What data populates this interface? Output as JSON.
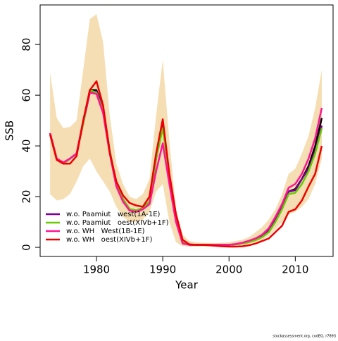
{
  "chart_data": {
    "type": "line",
    "x_label": "Year",
    "y_label": "SSB",
    "caption": "stockassessment.org, codEG, r7893",
    "x": [
      1973,
      1974,
      1975,
      1976,
      1977,
      1978,
      1979,
      1980,
      1981,
      1982,
      1983,
      1984,
      1985,
      1986,
      1987,
      1988,
      1989,
      1990,
      1991,
      1992,
      1993,
      1994,
      1995,
      1996,
      1997,
      1998,
      1999,
      2000,
      2001,
      2002,
      2003,
      2004,
      2005,
      2006,
      2007,
      2008,
      2009,
      2010,
      2011,
      2012,
      2013,
      2014
    ],
    "band": {
      "color": "#f5deb3",
      "lower": [
        21,
        18.5,
        19,
        21,
        26,
        32,
        35,
        30,
        26,
        22,
        16,
        12,
        10,
        10,
        11,
        14,
        22,
        25,
        10,
        2,
        0.5,
        0.3,
        0.3,
        0.3,
        0.3,
        0.3,
        0.3,
        0.3,
        0.5,
        0.8,
        1.2,
        2,
        3,
        4.5,
        7,
        10,
        13,
        14,
        16,
        19,
        25,
        35
      ],
      "upper": [
        69,
        51,
        47,
        47.5,
        50,
        70,
        90,
        92,
        81,
        52,
        33,
        25,
        20,
        19,
        21,
        27,
        52,
        74,
        42,
        15,
        5,
        2.5,
        2,
        1.8,
        1.7,
        1.7,
        1.8,
        2,
        2.5,
        3,
        4,
        6,
        8,
        11,
        15,
        21,
        29,
        31,
        37,
        44,
        55,
        70
      ]
    },
    "series": [
      {
        "color": "#000000",
        "values": [
          45,
          35,
          33,
          35,
          37,
          49,
          62,
          62,
          55,
          38,
          25,
          19,
          15,
          14.5,
          15.5,
          18,
          35,
          48,
          28,
          11,
          2,
          1,
          1,
          1,
          1,
          1,
          1,
          1,
          1.2,
          1.6,
          2.2,
          3,
          4.5,
          6.5,
          11,
          16,
          22,
          23,
          27,
          32,
          40,
          51
        ]
      },
      {
        "name": "w.o. Paamiut   west(1A-1E)",
        "color": "#7b0096",
        "values": [
          45,
          35,
          33,
          35,
          37,
          49,
          61,
          61.5,
          55,
          38,
          25,
          19,
          15,
          14.5,
          15.5,
          18,
          35,
          48,
          28,
          11,
          2,
          1,
          1,
          1,
          1,
          1,
          1,
          1,
          1.2,
          1.6,
          2.2,
          3,
          4.5,
          6.5,
          11,
          16,
          22,
          22.5,
          27,
          31,
          38,
          48
        ]
      },
      {
        "name": "w.o. Paamiut   oest(XIVb+1F)",
        "color": "#66cc00",
        "values": [
          45,
          35,
          33,
          35,
          37,
          49,
          62,
          61,
          54,
          38,
          25,
          19,
          15,
          14.5,
          15.5,
          18,
          35,
          47,
          28,
          11,
          2,
          1,
          1,
          1,
          1,
          1,
          1,
          1,
          1.2,
          1.5,
          2,
          2.8,
          4,
          6,
          10,
          15,
          21,
          21.5,
          25,
          30,
          37,
          47
        ]
      },
      {
        "name": "w.o. WH   West(1B-1E)",
        "color": "#ff1493",
        "values": [
          45,
          35,
          33.5,
          35,
          37,
          50,
          61,
          60.5,
          53,
          37,
          24,
          18,
          14.5,
          14,
          15,
          17,
          30,
          41,
          25,
          10,
          1.5,
          1,
          1,
          1,
          1,
          1,
          1,
          1,
          1.3,
          1.8,
          2.6,
          3.5,
          5,
          7.5,
          12,
          17,
          23.5,
          25,
          29,
          35,
          43,
          55
        ]
      },
      {
        "name": "w.o. WH   oest(XIVb+1F)",
        "color": "#ee0000",
        "values": [
          44.5,
          34.5,
          33,
          33,
          36,
          50,
          62,
          65.5,
          56,
          37.5,
          26,
          20.5,
          17.5,
          16.5,
          16,
          20,
          37,
          50.5,
          29,
          13,
          3,
          1.2,
          1,
          1,
          0.8,
          0.6,
          0.4,
          0.3,
          0.3,
          0.4,
          0.8,
          1.5,
          2.5,
          3.5,
          6,
          8.5,
          14,
          15,
          18.5,
          24,
          29,
          40
        ]
      }
    ],
    "xlim": [
      1971.5,
      2015.7
    ],
    "ylim": [
      -3.6,
      95.6
    ],
    "xticks": [
      1980,
      1990,
      2000,
      2010
    ],
    "yticks": [
      0,
      20,
      40,
      60,
      80
    ],
    "legend": "bottom-left"
  }
}
